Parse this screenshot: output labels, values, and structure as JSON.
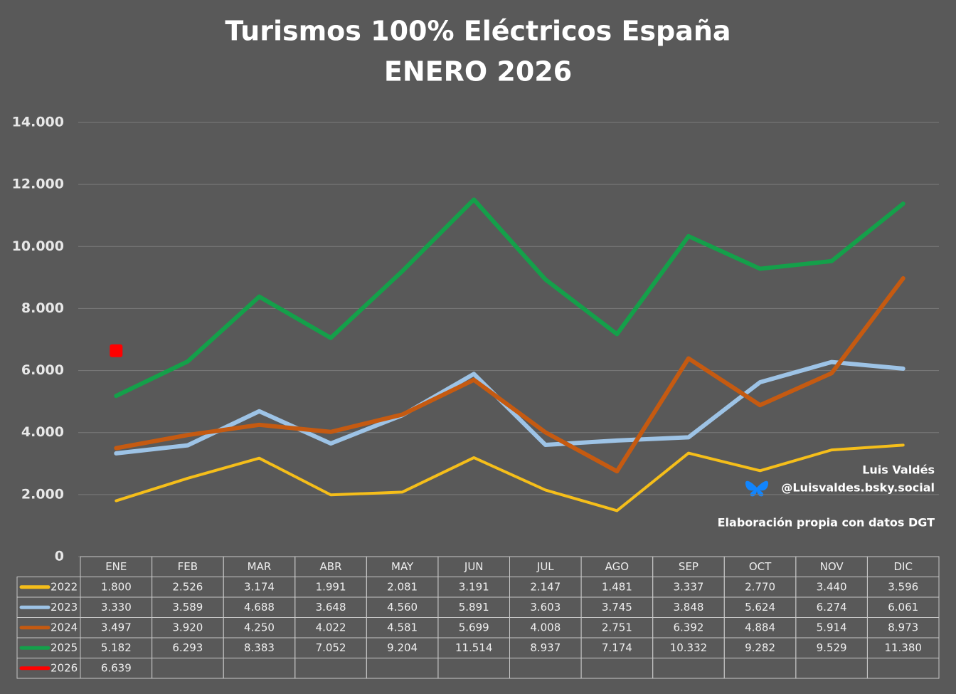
{
  "chart_data": {
    "type": "line",
    "title": "Turismos 100% Eléctricos España",
    "subtitle": "ENERO 2026",
    "categories": [
      "ENE",
      "FEB",
      "MAR",
      "ABR",
      "MAY",
      "JUN",
      "JUL",
      "AGO",
      "SEP",
      "OCT",
      "NOV",
      "DIC"
    ],
    "series": [
      {
        "name": "2022",
        "color": "#f5be1a",
        "values": [
          1800,
          2526,
          3174,
          1991,
          2081,
          3191,
          2147,
          1481,
          3337,
          2770,
          3440,
          3596
        ],
        "value_labels": [
          "1.800",
          "2.526",
          "3.174",
          "1.991",
          "2.081",
          "3.191",
          "2.147",
          "1.481",
          "3.337",
          "2.770",
          "3.440",
          "3.596"
        ]
      },
      {
        "name": "2023",
        "color": "#9dc3e6",
        "values": [
          3330,
          3589,
          4688,
          3648,
          4560,
          5891,
          3603,
          3745,
          3848,
          5624,
          6274,
          6061
        ],
        "value_labels": [
          "3.330",
          "3.589",
          "4.688",
          "3.648",
          "4.560",
          "5.891",
          "3.603",
          "3.745",
          "3.848",
          "5.624",
          "6.274",
          "6.061"
        ]
      },
      {
        "name": "2024",
        "color": "#c55a11",
        "values": [
          3497,
          3920,
          4250,
          4022,
          4581,
          5699,
          4008,
          2751,
          6392,
          4884,
          5914,
          8973
        ],
        "value_labels": [
          "3.497",
          "3.920",
          "4.250",
          "4.022",
          "4.581",
          "5.699",
          "4.008",
          "2.751",
          "6.392",
          "4.884",
          "5.914",
          "8.973"
        ]
      },
      {
        "name": "2025",
        "color": "#14a04a",
        "values": [
          5182,
          6293,
          8383,
          7052,
          9204,
          11514,
          8937,
          7174,
          10332,
          9282,
          9529,
          11380
        ],
        "value_labels": [
          "5.182",
          "6.293",
          "8.383",
          "7.052",
          "9.204",
          "11.514",
          "8.937",
          "7.174",
          "10.332",
          "9.282",
          "9.529",
          "11.380"
        ]
      },
      {
        "name": "2026",
        "color": "#ff0000",
        "values": [
          6639,
          null,
          null,
          null,
          null,
          null,
          null,
          null,
          null,
          null,
          null,
          null
        ],
        "value_labels": [
          "6.639",
          null,
          null,
          null,
          null,
          null,
          null,
          null,
          null,
          null,
          null,
          null
        ]
      }
    ],
    "ylim": [
      0,
      14000
    ],
    "yticks": [
      0,
      {
        "value": 2000,
        "label": "2.000"
      },
      {
        "value": 4000,
        "label": "4.000"
      },
      {
        "value": 6000,
        "label": "6.000"
      },
      {
        "value": 8000,
        "label": "8.000"
      },
      {
        "value": 10000,
        "label": "10.000"
      },
      {
        "value": 12000,
        "label": "12.000"
      },
      {
        "value": 14000,
        "label": "14.000"
      }
    ],
    "grid": true,
    "annotations": [
      "Luis Valdés",
      "@Luisvaldes.bsky.social",
      "Elaboración propia con datos DGT"
    ]
  }
}
